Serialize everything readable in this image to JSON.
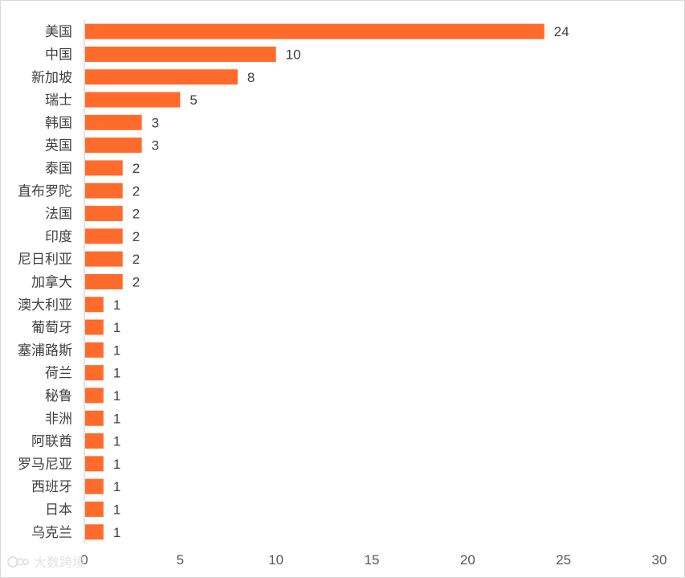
{
  "chart_data": {
    "type": "bar",
    "orientation": "horizontal",
    "title": "",
    "xlabel": "",
    "ylabel": "",
    "categories": [
      "美国",
      "中国",
      "新加坡",
      "瑞士",
      "韩国",
      "英国",
      "泰国",
      "直布罗陀",
      "法国",
      "印度",
      "尼日利亚",
      "加拿大",
      "澳大利亚",
      "葡萄牙",
      "塞浦路斯",
      "荷兰",
      "秘鲁",
      "非洲",
      "阿联酋",
      "罗马尼亚",
      "西班牙",
      "日本",
      "乌克兰"
    ],
    "values": [
      24,
      10,
      8,
      5,
      3,
      3,
      2,
      2,
      2,
      2,
      2,
      2,
      1,
      1,
      1,
      1,
      1,
      1,
      1,
      1,
      1,
      1,
      1
    ],
    "xlim": [
      0,
      30
    ],
    "xticks": [
      0,
      5,
      10,
      15,
      20,
      25,
      30
    ],
    "bar_color": "#FF6B2B",
    "grid": false,
    "legend": "none"
  },
  "watermark": {
    "text": "大数跨境",
    "icon": "logo-icon"
  }
}
